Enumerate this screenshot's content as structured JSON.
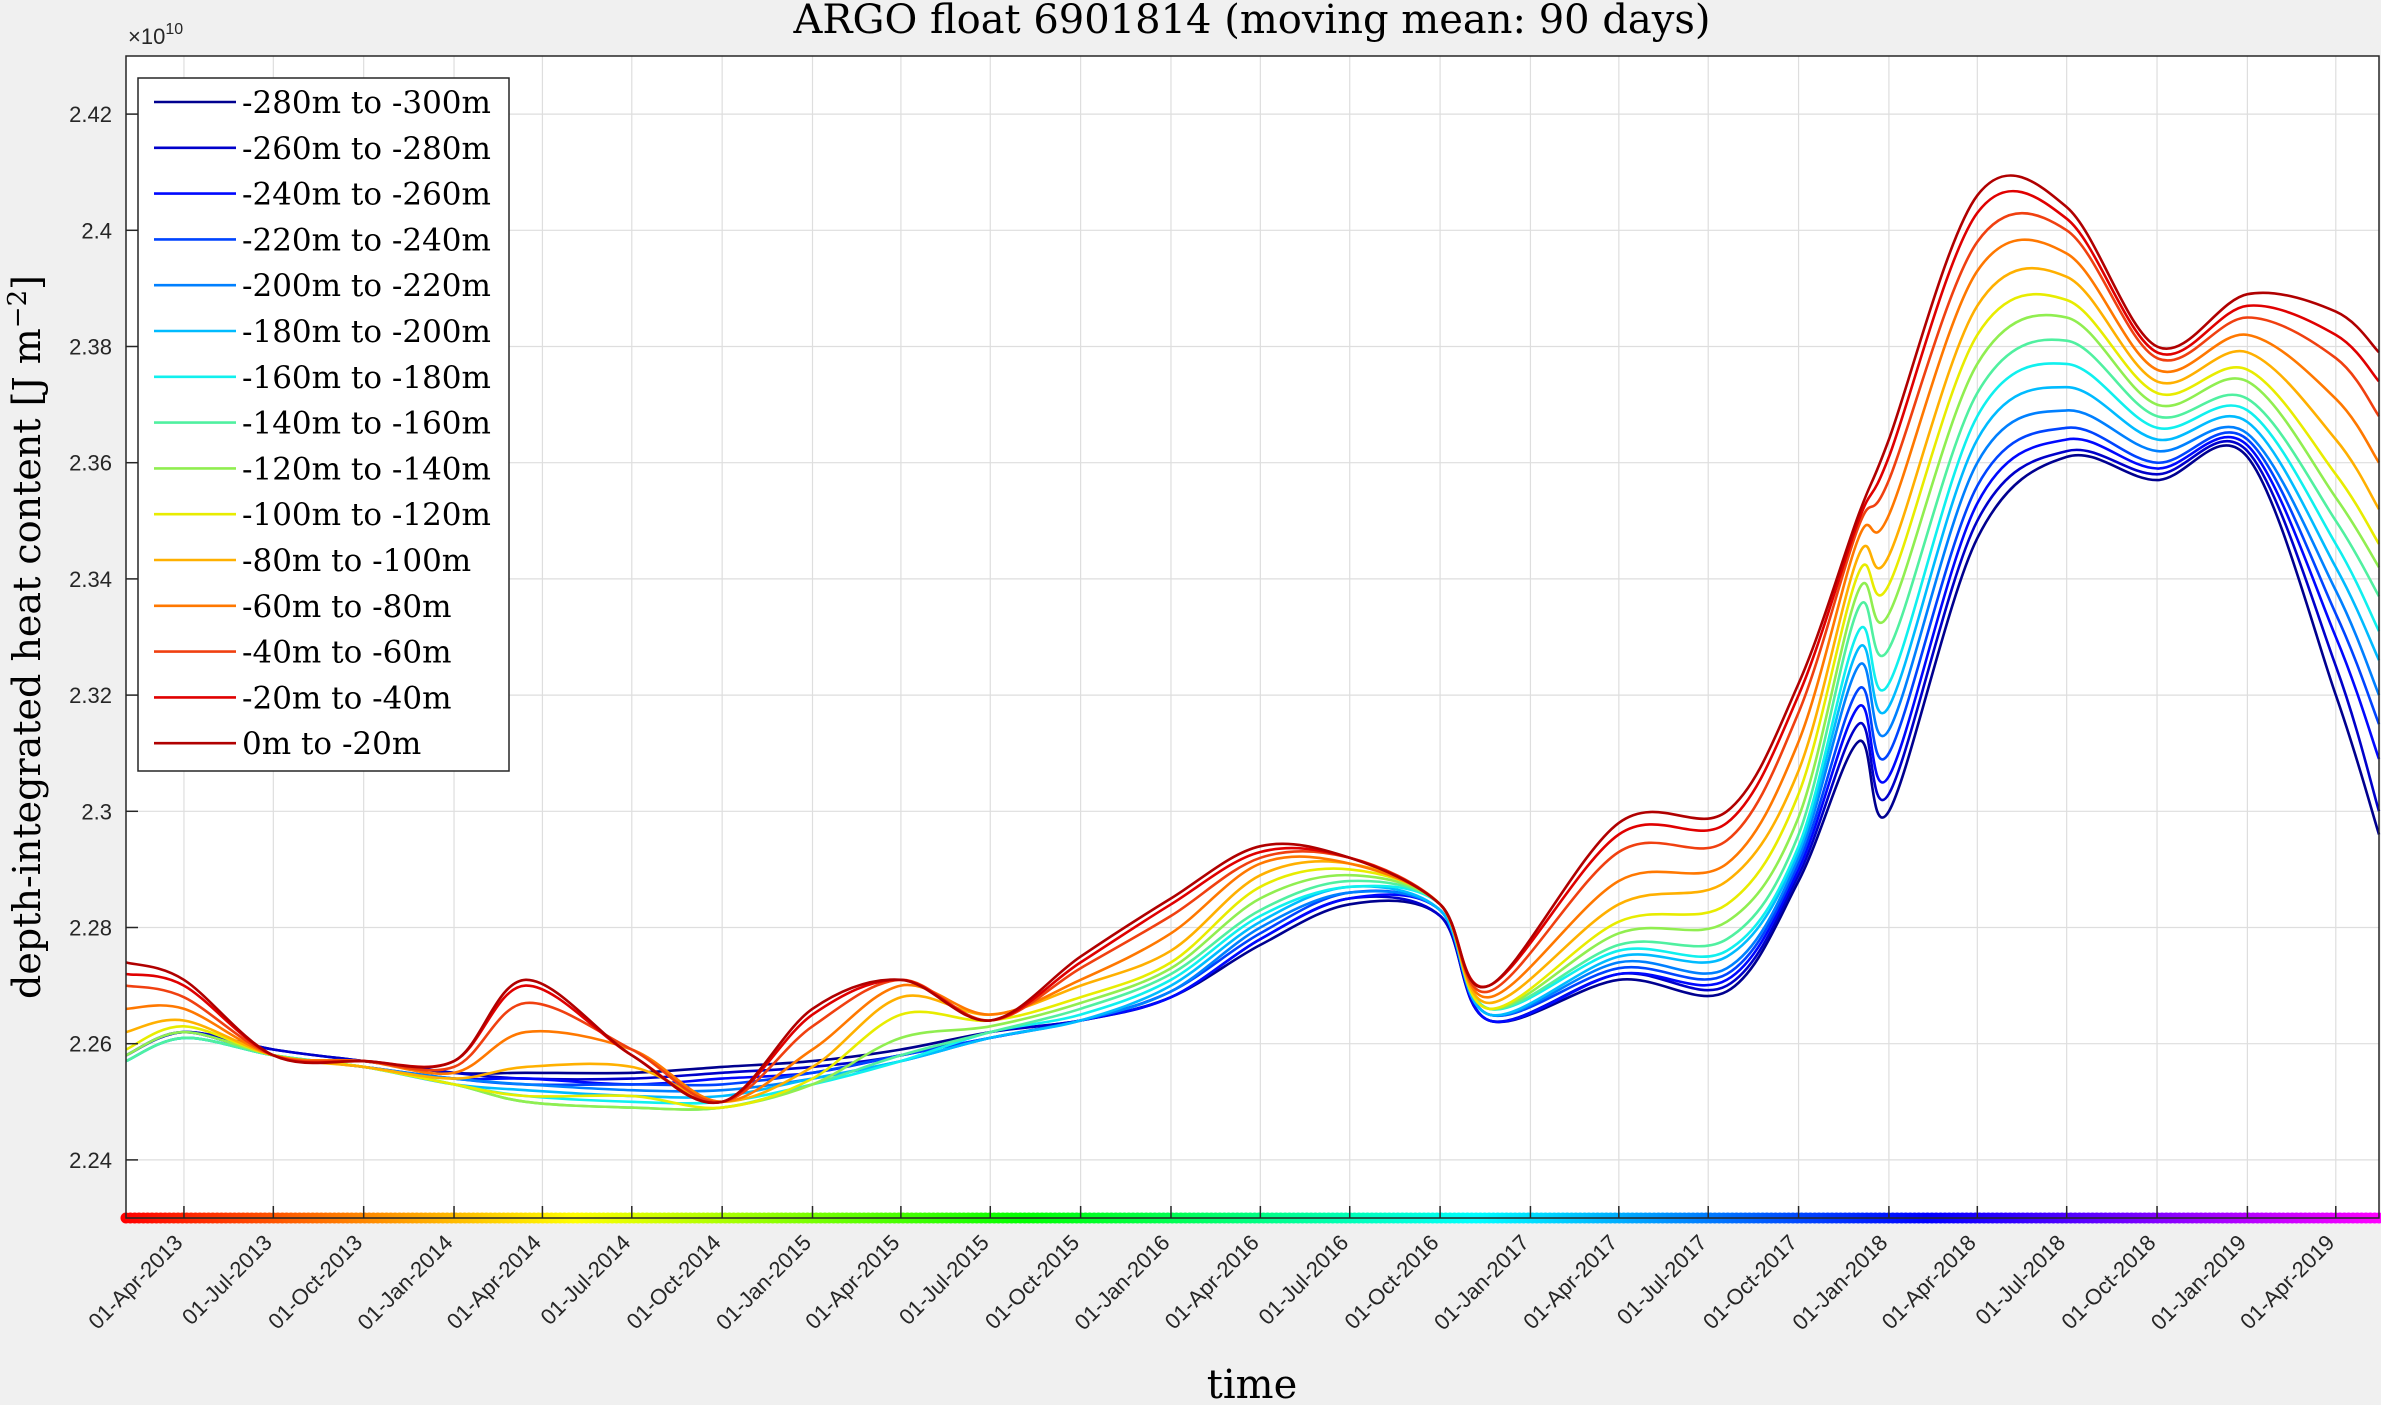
{
  "chart_data": {
    "type": "line",
    "title": "ARGO float 6901814 (moving mean: 90 days)",
    "xlabel": "time",
    "ylabel": "depth-integrated heat content [J m",
    "ylabel_sup": "−2",
    "ylabel_close": "]",
    "y_exponent_label": "×10",
    "y_exponent_power": "10",
    "ylim": [
      2.23,
      2.43
    ],
    "y_ticks": [
      2.24,
      2.26,
      2.28,
      2.3,
      2.32,
      2.34,
      2.36,
      2.38,
      2.4,
      2.42
    ],
    "y_tick_labels": [
      "2.24",
      "2.26",
      "2.28",
      "2.3",
      "2.32",
      "2.34",
      "2.36",
      "2.38",
      "2.4",
      "2.42"
    ],
    "x_start": "2013-02-01",
    "x_end": "2019-05-15",
    "x_ticks": [
      "2013-04-01",
      "2013-07-01",
      "2013-10-01",
      "2014-01-01",
      "2014-04-01",
      "2014-07-01",
      "2014-10-01",
      "2015-01-01",
      "2015-04-01",
      "2015-07-01",
      "2015-10-01",
      "2016-01-01",
      "2016-04-01",
      "2016-07-01",
      "2016-10-01",
      "2017-01-01",
      "2017-04-01",
      "2017-07-01",
      "2017-10-01",
      "2018-01-01",
      "2018-04-01",
      "2018-07-01",
      "2018-10-01",
      "2019-01-01",
      "2019-04-01"
    ],
    "x_tick_labels": [
      "01-Apr-2013",
      "01-Jul-2013",
      "01-Oct-2013",
      "01-Jan-2014",
      "01-Apr-2014",
      "01-Jul-2014",
      "01-Oct-2014",
      "01-Jan-2015",
      "01-Apr-2015",
      "01-Jul-2015",
      "01-Oct-2015",
      "01-Jan-2016",
      "01-Apr-2016",
      "01-Jul-2016",
      "01-Oct-2016",
      "01-Jan-2017",
      "01-Apr-2017",
      "01-Jul-2017",
      "01-Oct-2017",
      "01-Jan-2018",
      "01-Apr-2018",
      "01-Jul-2018",
      "01-Oct-2018",
      "01-Jan-2019",
      "01-Apr-2019"
    ],
    "grid": true,
    "legend_position": "top-left",
    "x": [
      "2013-02-01",
      "2013-04-01",
      "2013-07-01",
      "2013-10-01",
      "2014-01-01",
      "2014-03-15",
      "2014-07-01",
      "2014-10-01",
      "2015-01-01",
      "2015-04-01",
      "2015-07-01",
      "2015-10-01",
      "2016-01-01",
      "2016-04-01",
      "2016-07-01",
      "2016-10-01",
      "2016-11-20",
      "2017-04-01",
      "2017-07-20",
      "2017-10-01",
      "2017-12-01",
      "2018-01-01",
      "2018-04-01",
      "2018-07-01",
      "2018-10-01",
      "2019-01-01",
      "2019-04-01",
      "2019-05-15"
    ],
    "series": [
      {
        "name": "-280m to -300m",
        "color": "#00008f",
        "values": [
          2.258,
          2.262,
          2.259,
          2.257,
          2.255,
          2.255,
          2.255,
          2.256,
          2.257,
          2.259,
          2.262,
          2.264,
          2.268,
          2.277,
          2.284,
          2.282,
          2.264,
          2.271,
          2.269,
          2.288,
          2.312,
          2.3,
          2.347,
          2.361,
          2.357,
          2.361,
          2.32,
          2.296
        ]
      },
      {
        "name": "-260m to -280m",
        "color": "#0000cb",
        "values": [
          2.258,
          2.262,
          2.259,
          2.257,
          2.255,
          2.254,
          2.254,
          2.255,
          2.256,
          2.258,
          2.262,
          2.264,
          2.268,
          2.278,
          2.285,
          2.282,
          2.264,
          2.272,
          2.27,
          2.289,
          2.315,
          2.303,
          2.35,
          2.362,
          2.358,
          2.362,
          2.325,
          2.3
        ]
      },
      {
        "name": "-240m to -260m",
        "color": "#0008ff",
        "values": [
          2.258,
          2.262,
          2.258,
          2.256,
          2.254,
          2.254,
          2.253,
          2.254,
          2.255,
          2.258,
          2.261,
          2.264,
          2.268,
          2.278,
          2.285,
          2.283,
          2.264,
          2.272,
          2.271,
          2.29,
          2.318,
          2.306,
          2.353,
          2.364,
          2.359,
          2.363,
          2.33,
          2.309
        ]
      },
      {
        "name": "-220m to -240m",
        "color": "#0044ff",
        "values": [
          2.258,
          2.262,
          2.258,
          2.256,
          2.254,
          2.253,
          2.253,
          2.253,
          2.255,
          2.258,
          2.261,
          2.264,
          2.269,
          2.279,
          2.286,
          2.283,
          2.265,
          2.273,
          2.272,
          2.291,
          2.321,
          2.31,
          2.356,
          2.366,
          2.36,
          2.364,
          2.334,
          2.315
        ]
      },
      {
        "name": "-200m to -220m",
        "color": "#0080ff",
        "values": [
          2.257,
          2.261,
          2.258,
          2.256,
          2.254,
          2.253,
          2.252,
          2.252,
          2.254,
          2.257,
          2.261,
          2.264,
          2.269,
          2.28,
          2.286,
          2.283,
          2.265,
          2.274,
          2.273,
          2.292,
          2.325,
          2.314,
          2.36,
          2.369,
          2.362,
          2.365,
          2.338,
          2.32
        ]
      },
      {
        "name": "-180m to -200m",
        "color": "#00bbff",
        "values": [
          2.257,
          2.261,
          2.258,
          2.256,
          2.253,
          2.252,
          2.251,
          2.251,
          2.254,
          2.257,
          2.261,
          2.264,
          2.27,
          2.281,
          2.287,
          2.283,
          2.265,
          2.275,
          2.275,
          2.293,
          2.328,
          2.318,
          2.364,
          2.373,
          2.364,
          2.367,
          2.342,
          2.326
        ]
      },
      {
        "name": "-160m to -180m",
        "color": "#10f0ee",
        "values": [
          2.257,
          2.261,
          2.258,
          2.256,
          2.253,
          2.251,
          2.25,
          2.25,
          2.253,
          2.257,
          2.262,
          2.265,
          2.271,
          2.282,
          2.287,
          2.284,
          2.266,
          2.276,
          2.276,
          2.294,
          2.331,
          2.322,
          2.368,
          2.377,
          2.366,
          2.369,
          2.346,
          2.331
        ]
      },
      {
        "name": "-140m to -160m",
        "color": "#50f0a0",
        "values": [
          2.257,
          2.261,
          2.258,
          2.256,
          2.253,
          2.25,
          2.249,
          2.249,
          2.253,
          2.258,
          2.262,
          2.266,
          2.272,
          2.283,
          2.288,
          2.284,
          2.266,
          2.277,
          2.278,
          2.296,
          2.335,
          2.328,
          2.372,
          2.381,
          2.368,
          2.371,
          2.35,
          2.337
        ]
      },
      {
        "name": "-120m to -140m",
        "color": "#90ee50",
        "values": [
          2.258,
          2.262,
          2.258,
          2.256,
          2.253,
          2.25,
          2.249,
          2.249,
          2.253,
          2.261,
          2.263,
          2.267,
          2.273,
          2.285,
          2.289,
          2.284,
          2.266,
          2.279,
          2.281,
          2.299,
          2.338,
          2.334,
          2.377,
          2.385,
          2.37,
          2.374,
          2.354,
          2.342
        ]
      },
      {
        "name": "-100m to -120m",
        "color": "#e8ec00",
        "values": [
          2.259,
          2.263,
          2.258,
          2.256,
          2.253,
          2.251,
          2.251,
          2.249,
          2.254,
          2.265,
          2.264,
          2.268,
          2.274,
          2.287,
          2.29,
          2.284,
          2.266,
          2.281,
          2.284,
          2.303,
          2.341,
          2.339,
          2.382,
          2.388,
          2.372,
          2.376,
          2.358,
          2.346
        ]
      },
      {
        "name": "-80m to -100m",
        "color": "#ffb000",
        "values": [
          2.262,
          2.264,
          2.258,
          2.256,
          2.254,
          2.256,
          2.256,
          2.25,
          2.256,
          2.268,
          2.265,
          2.27,
          2.276,
          2.289,
          2.291,
          2.284,
          2.267,
          2.284,
          2.288,
          2.307,
          2.344,
          2.344,
          2.387,
          2.392,
          2.374,
          2.379,
          2.364,
          2.352
        ]
      },
      {
        "name": "-60m to -80m",
        "color": "#ff7800",
        "values": [
          2.266,
          2.266,
          2.258,
          2.257,
          2.255,
          2.262,
          2.259,
          2.25,
          2.259,
          2.27,
          2.265,
          2.271,
          2.279,
          2.291,
          2.291,
          2.284,
          2.268,
          2.288,
          2.291,
          2.312,
          2.347,
          2.351,
          2.393,
          2.396,
          2.376,
          2.382,
          2.371,
          2.36
        ]
      },
      {
        "name": "-40m to -60m",
        "color": "#f04010",
        "values": [
          2.27,
          2.268,
          2.258,
          2.257,
          2.256,
          2.267,
          2.259,
          2.25,
          2.263,
          2.271,
          2.264,
          2.273,
          2.282,
          2.292,
          2.292,
          2.284,
          2.269,
          2.293,
          2.295,
          2.317,
          2.349,
          2.357,
          2.398,
          2.4,
          2.378,
          2.385,
          2.378,
          2.368
        ]
      },
      {
        "name": "-20m to -40m",
        "color": "#e00000",
        "values": [
          2.272,
          2.27,
          2.258,
          2.257,
          2.257,
          2.27,
          2.258,
          2.25,
          2.265,
          2.271,
          2.264,
          2.274,
          2.284,
          2.293,
          2.292,
          2.284,
          2.27,
          2.296,
          2.298,
          2.32,
          2.35,
          2.361,
          2.403,
          2.402,
          2.379,
          2.387,
          2.382,
          2.374
        ]
      },
      {
        "name": "0m to -20m",
        "color": "#b00000",
        "values": [
          2.274,
          2.271,
          2.258,
          2.257,
          2.257,
          2.271,
          2.258,
          2.25,
          2.266,
          2.271,
          2.264,
          2.275,
          2.285,
          2.294,
          2.292,
          2.284,
          2.27,
          2.298,
          2.3,
          2.322,
          2.351,
          2.364,
          2.406,
          2.404,
          2.38,
          2.389,
          2.386,
          2.379
        ]
      }
    ]
  }
}
